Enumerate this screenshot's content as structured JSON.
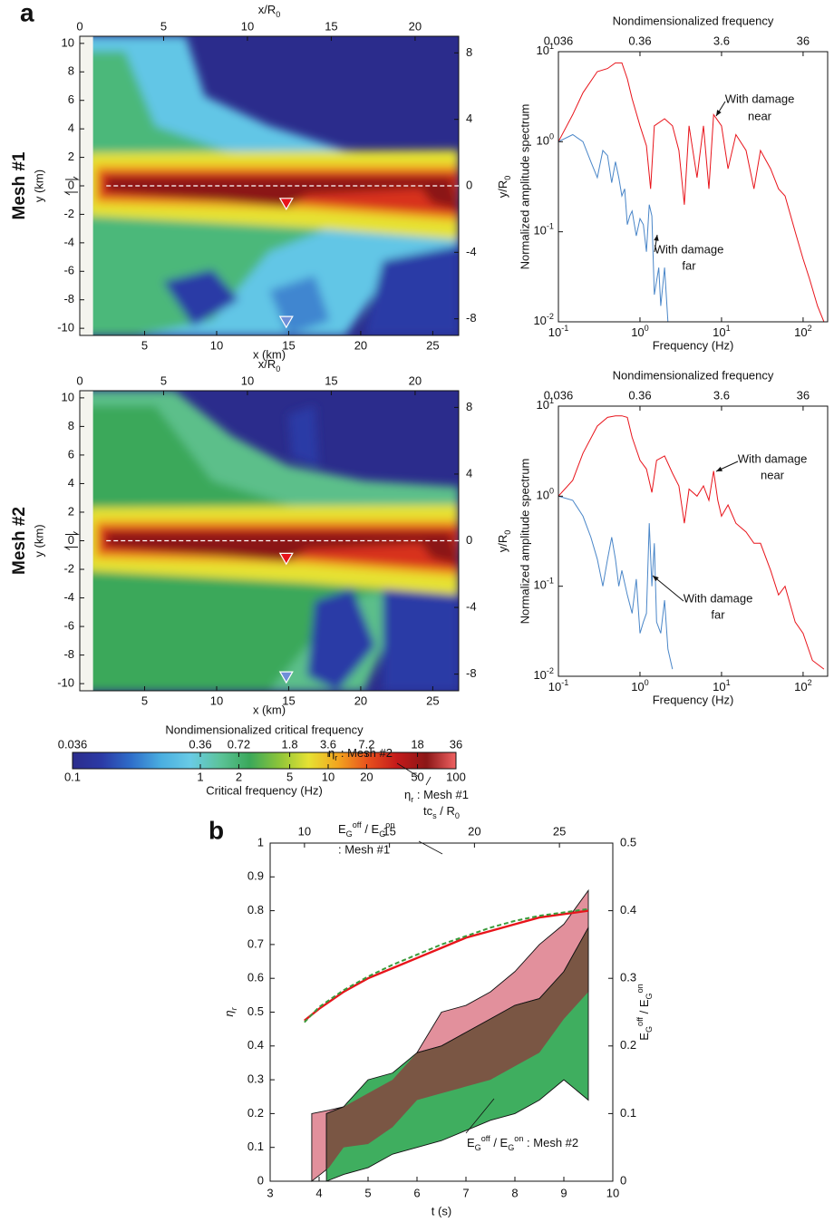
{
  "panel_labels": [
    "a",
    "b"
  ],
  "chart_data": [
    {
      "type": "heatmap",
      "row_label": "Mesh #1",
      "xlabel": "x (km)",
      "ylabel": "y (km)",
      "x2label": [
        "x/R",
        {
          "text": "0",
          "shift": "sub"
        }
      ],
      "xlim": [
        0.5,
        26.8
      ],
      "xticks": [
        5,
        10,
        15,
        20,
        25
      ],
      "ylim": [
        -10.5,
        10.5
      ],
      "yticks": [
        -10,
        -8,
        -6,
        -4,
        -2,
        0,
        2,
        4,
        6,
        8,
        10
      ],
      "x2lim": [
        0,
        22.6
      ],
      "x2ticks": [
        0,
        5,
        10,
        15,
        20
      ],
      "y2lim": [
        -9,
        9
      ],
      "y2ticks": [
        -8,
        -4,
        0,
        4,
        8
      ]
    },
    {
      "type": "line",
      "log": true,
      "title": "Nondimensionalized frequency",
      "xlabel": "Frequency (Hz)",
      "ylabel": "Normalized amplitude spectrum",
      "ylabel2": [
        "y/R",
        {
          "text": "0",
          "shift": "sub"
        }
      ],
      "xlim": [
        0.1,
        200
      ],
      "xticks": [
        {
          "value": 0.1,
          "label": [
            "10",
            {
              "text": "-1",
              "shift": "super"
            }
          ]
        },
        {
          "value": 1,
          "label": [
            "10",
            {
              "text": "0",
              "shift": "super"
            }
          ]
        },
        {
          "value": 10,
          "label": [
            "10",
            {
              "text": "1",
              "shift": "super"
            }
          ]
        },
        {
          "value": 100,
          "label": [
            "10",
            {
              "text": "2",
              "shift": "super"
            }
          ]
        }
      ],
      "ylim": [
        0.01,
        10
      ],
      "yticks": [
        {
          "value": 0.01,
          "label": [
            "10",
            {
              "text": "-2",
              "shift": "super"
            }
          ]
        },
        {
          "value": 0.1,
          "label": [
            "10",
            {
              "text": "-1",
              "shift": "super"
            }
          ]
        },
        {
          "value": 1,
          "label": [
            "10",
            {
              "text": "0",
              "shift": "super"
            }
          ]
        },
        {
          "value": 10,
          "label": [
            "10",
            {
              "text": "1",
              "shift": "super"
            }
          ]
        }
      ],
      "x2lim": [
        0.036,
        72
      ],
      "x2ticks": [
        0.036,
        0.36,
        3.6,
        36
      ],
      "series": [
        {
          "color": "#e8141b",
          "x": [
            0.1,
            0.15,
            0.2,
            0.3,
            0.4,
            0.5,
            0.6,
            0.7,
            0.8,
            1.0,
            1.2,
            1.35,
            1.5,
            2,
            2.5,
            3,
            3.5,
            4,
            5,
            6,
            7,
            8,
            10,
            12,
            15,
            20,
            25,
            30,
            40,
            50,
            60,
            80,
            100,
            120,
            150,
            180
          ],
          "values": [
            1.0,
            2,
            3.5,
            6,
            6.5,
            7.5,
            7.5,
            5,
            3,
            1.5,
            0.9,
            0.3,
            1.5,
            1.8,
            1.5,
            0.8,
            0.2,
            1.5,
            0.4,
            1.5,
            0.3,
            2,
            1.5,
            0.5,
            1.2,
            0.8,
            0.3,
            0.8,
            0.5,
            0.3,
            0.25,
            0.1,
            0.05,
            0.03,
            0.015,
            0.01
          ]
        },
        {
          "color": "#4a86c8",
          "x": [
            0.1,
            0.15,
            0.2,
            0.25,
            0.3,
            0.35,
            0.4,
            0.45,
            0.5,
            0.55,
            0.6,
            0.65,
            0.7,
            0.75,
            0.8,
            0.9,
            1.0,
            1.1,
            1.2,
            1.3,
            1.4,
            1.5,
            1.7,
            1.8,
            2.0,
            2.2
          ],
          "values": [
            1.0,
            1.2,
            1.0,
            0.6,
            0.4,
            0.8,
            0.7,
            0.35,
            0.6,
            0.4,
            0.25,
            0.3,
            0.12,
            0.15,
            0.17,
            0.09,
            0.14,
            0.12,
            0.06,
            0.2,
            0.15,
            0.02,
            0.04,
            0.015,
            0.04,
            0.01
          ]
        }
      ],
      "annotations": [
        [
          "With damage",
          "near"
        ],
        [
          "With damage",
          "far"
        ]
      ]
    },
    {
      "type": "heatmap",
      "row_label": "Mesh #2",
      "xlabel": "x (km)",
      "ylabel": "y (km)",
      "x2label": [
        "x/R",
        {
          "text": "0",
          "shift": "sub"
        }
      ],
      "xlim": [
        0.5,
        26.8
      ],
      "xticks": [
        5,
        10,
        15,
        20,
        25
      ],
      "ylim": [
        -10.5,
        10.5
      ],
      "yticks": [
        -10,
        -8,
        -6,
        -4,
        -2,
        0,
        2,
        4,
        6,
        8,
        10
      ],
      "x2lim": [
        0,
        22.6
      ],
      "x2ticks": [
        0,
        5,
        10,
        15,
        20
      ],
      "y2lim": [
        -9,
        9
      ],
      "y2ticks": [
        -8,
        -4,
        0,
        4,
        8
      ]
    },
    {
      "type": "line",
      "log": true,
      "title": "Nondimensionalized frequency",
      "xlabel": "Frequency (Hz)",
      "ylabel": "Normalized amplitude spectrum",
      "ylabel2": [
        "y/R",
        {
          "text": "0",
          "shift": "sub"
        }
      ],
      "xlim": [
        0.1,
        200
      ],
      "xticks": [
        {
          "value": 0.1,
          "label": [
            "10",
            {
              "text": "-1",
              "shift": "super"
            }
          ]
        },
        {
          "value": 1,
          "label": [
            "10",
            {
              "text": "0",
              "shift": "super"
            }
          ]
        },
        {
          "value": 10,
          "label": [
            "10",
            {
              "text": "1",
              "shift": "super"
            }
          ]
        },
        {
          "value": 100,
          "label": [
            "10",
            {
              "text": "2",
              "shift": "super"
            }
          ]
        }
      ],
      "ylim": [
        0.01,
        10
      ],
      "yticks": [
        {
          "value": 0.01,
          "label": [
            "10",
            {
              "text": "-2",
              "shift": "super"
            }
          ]
        },
        {
          "value": 0.1,
          "label": [
            "10",
            {
              "text": "-1",
              "shift": "super"
            }
          ]
        },
        {
          "value": 1,
          "label": [
            "10",
            {
              "text": "0",
              "shift": "super"
            }
          ]
        },
        {
          "value": 10,
          "label": [
            "10",
            {
              "text": "1",
              "shift": "super"
            }
          ]
        }
      ],
      "x2lim": [
        0.036,
        72
      ],
      "x2ticks": [
        0.036,
        0.36,
        3.6,
        36
      ],
      "series": [
        {
          "color": "#e8141b",
          "x": [
            0.1,
            0.15,
            0.2,
            0.3,
            0.4,
            0.5,
            0.6,
            0.7,
            0.8,
            1.0,
            1.2,
            1.4,
            1.6,
            2,
            2.5,
            3,
            3.5,
            4,
            5,
            6,
            7,
            8,
            9,
            10,
            12,
            15,
            20,
            25,
            30,
            40,
            50,
            60,
            80,
            100,
            130,
            180
          ],
          "values": [
            1.0,
            1.5,
            3,
            6,
            7.5,
            7.8,
            7.8,
            7.5,
            4.5,
            2.5,
            2.0,
            1.1,
            2.5,
            2.8,
            1.8,
            1.3,
            0.5,
            1.2,
            1.0,
            1.3,
            0.9,
            1.9,
            0.9,
            0.6,
            0.8,
            0.5,
            0.4,
            0.3,
            0.3,
            0.15,
            0.08,
            0.1,
            0.04,
            0.03,
            0.015,
            0.012
          ]
        },
        {
          "color": "#4a86c8",
          "x": [
            0.1,
            0.15,
            0.2,
            0.25,
            0.3,
            0.35,
            0.4,
            0.45,
            0.5,
            0.55,
            0.6,
            0.7,
            0.8,
            0.9,
            1.0,
            1.1,
            1.2,
            1.3,
            1.4,
            1.5,
            1.6,
            1.8,
            2.0,
            2.2,
            2.5
          ],
          "values": [
            1.0,
            0.9,
            0.6,
            0.35,
            0.2,
            0.1,
            0.2,
            0.35,
            0.2,
            0.1,
            0.15,
            0.08,
            0.05,
            0.12,
            0.03,
            0.04,
            0.05,
            0.5,
            0.1,
            0.3,
            0.04,
            0.03,
            0.07,
            0.02,
            0.012
          ]
        }
      ],
      "annotations": [
        [
          "With damage",
          "near"
        ],
        [
          "With damage",
          "far"
        ]
      ]
    },
    {
      "type": "colorbar",
      "log": true,
      "title": "Nondimensionalized critical frequency",
      "xlabel": "Critical frequency (Hz)",
      "x2lim": [
        0.036,
        36
      ],
      "x2ticks": [
        0.036,
        0.36,
        0.72,
        1.8,
        3.6,
        7.2,
        18,
        36
      ],
      "xlim": [
        0.1,
        100
      ],
      "xticks": [
        0.1,
        1,
        2,
        5,
        10,
        20,
        50,
        100
      ],
      "colormap": [
        "#2b2c8c",
        "#2b3aa6",
        "#2f6fca",
        "#4aaee0",
        "#69cbe6",
        "#5cc39a",
        "#3aa85a",
        "#8cc43a",
        "#e6e233",
        "#f3a51f",
        "#e8511d",
        "#c41a1a",
        "#8b1717",
        "#f06262"
      ]
    },
    {
      "type": "band",
      "xlabel": "t (s)",
      "ylabel": [
        "η",
        {
          "text": "r",
          "shift": "sub"
        }
      ],
      "x2label": [
        "tc",
        {
          "text": "s",
          "shift": "sub"
        },
        " / R",
        {
          "text": "0",
          "shift": "sub"
        }
      ],
      "y2label": [
        "E",
        {
          "text": "G",
          "shift": "sub"
        },
        {
          "text": "off",
          "shift": "super"
        },
        " / E",
        {
          "text": "G",
          "shift": "sub"
        },
        {
          "text": "on",
          "shift": "super"
        }
      ],
      "xlim": [
        3,
        10
      ],
      "xticks": [
        3,
        4,
        5,
        6,
        7,
        8,
        9,
        10
      ],
      "ylim": [
        0,
        1
      ],
      "yticks": [
        0,
        0.1,
        0.2,
        0.3,
        0.4,
        0.5,
        0.6,
        0.7,
        0.8,
        0.9,
        1
      ],
      "x2lim": [
        7.98,
        28.14
      ],
      "x2ticks": [
        10,
        15,
        20,
        25
      ],
      "y2lim": [
        0,
        0.5
      ],
      "y2ticks": [
        0,
        0.1,
        0.2,
        0.3,
        0.4,
        0.5
      ],
      "lines": [
        {
          "color": "#e8141b",
          "dash": false,
          "x": [
            3.7,
            4.0,
            4.5,
            5,
            5.5,
            6,
            6.5,
            7,
            7.5,
            8,
            8.5,
            9,
            9.5
          ],
          "values": [
            0.475,
            0.51,
            0.56,
            0.6,
            0.63,
            0.66,
            0.69,
            0.72,
            0.74,
            0.76,
            0.78,
            0.79,
            0.8
          ]
        },
        {
          "color": "#3a9a3a",
          "dash": true,
          "x": [
            3.7,
            4.0,
            4.5,
            5,
            5.5,
            6,
            6.5,
            7,
            7.5,
            8,
            8.5,
            9,
            9.5
          ],
          "values": [
            0.47,
            0.515,
            0.565,
            0.605,
            0.64,
            0.67,
            0.7,
            0.725,
            0.75,
            0.77,
            0.785,
            0.795,
            0.805
          ]
        }
      ],
      "bands": [
        {
          "color": "#e2909c",
          "x": [
            3.85,
            4.2,
            4.5,
            5,
            5.5,
            6,
            6.5,
            7,
            7.5,
            8,
            8.5,
            9,
            9.5
          ],
          "upper": [
            0.1,
            0.105,
            0.11,
            0.13,
            0.15,
            0.19,
            0.25,
            0.26,
            0.28,
            0.31,
            0.35,
            0.38,
            0.43
          ],
          "lower": [
            0,
            0.02,
            0.05,
            0.055,
            0.08,
            0.12,
            0.13,
            0.14,
            0.15,
            0.17,
            0.19,
            0.24,
            0.28
          ]
        },
        {
          "color": "#3fae5f",
          "overlap_color": "#7a5644",
          "x": [
            4.15,
            4.5,
            5,
            5.5,
            6,
            6.5,
            7,
            7.5,
            8,
            8.5,
            9,
            9.5
          ],
          "upper": [
            0.1,
            0.11,
            0.15,
            0.16,
            0.19,
            0.2,
            0.22,
            0.24,
            0.26,
            0.27,
            0.31,
            0.375
          ],
          "lower": [
            0,
            0.01,
            0.02,
            0.04,
            0.05,
            0.06,
            0.075,
            0.09,
            0.1,
            0.12,
            0.15,
            0.12
          ]
        }
      ],
      "annotations": [
        [
          [
            "η",
            {
              "text": "r",
              "shift": "sub"
            },
            " : Mesh #2"
          ]
        ],
        [
          [
            "η",
            {
              "text": "r",
              "shift": "sub"
            },
            " : Mesh #1"
          ]
        ],
        [
          [
            "E",
            {
              "text": "G",
              "shift": "sub"
            },
            {
              "text": "off",
              "shift": "super"
            },
            " / E",
            {
              "text": "G",
              "shift": "sub"
            },
            {
              "text": "on",
              "shift": "super"
            }
          ],
          ": Mesh #1"
        ],
        [
          [
            "E",
            {
              "text": "G",
              "shift": "sub"
            },
            {
              "text": "off",
              "shift": "super"
            },
            " / E",
            {
              "text": "G",
              "shift": "sub"
            },
            {
              "text": "on",
              "shift": "super"
            },
            " : Mesh #2"
          ]
        ]
      ]
    }
  ]
}
